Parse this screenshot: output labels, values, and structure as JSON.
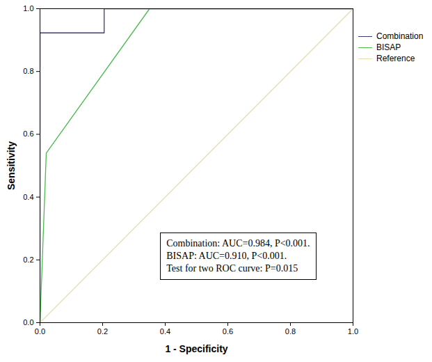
{
  "chart_data": {
    "type": "line",
    "xlabel": "1 - Specificity",
    "ylabel": "Sensitivity",
    "xlim": [
      0,
      1
    ],
    "ylim": [
      0,
      1
    ],
    "xticks": [
      {
        "value": 0,
        "label": "0.0"
      },
      {
        "value": 0.2,
        "label": "0.2"
      },
      {
        "value": 0.4,
        "label": "0.4"
      },
      {
        "value": 0.6,
        "label": "0.6"
      },
      {
        "value": 0.8,
        "label": "0.8"
      },
      {
        "value": 1,
        "label": "1.0"
      }
    ],
    "yticks": [
      {
        "value": 0,
        "label": "0.0"
      },
      {
        "value": 0.2,
        "label": "0.2"
      },
      {
        "value": 0.4,
        "label": "0.4"
      },
      {
        "value": 0.6,
        "label": "0.6"
      },
      {
        "value": 0.8,
        "label": "0.8"
      },
      {
        "value": 1,
        "label": "1.0"
      }
    ],
    "legend": "right",
    "annotations": [
      "Combination: AUC=0.984, P<0.001.",
      "BISAP: AUC=0.910, P<0.001.",
      "Test for two ROC curve: P=0.015"
    ],
    "series": [
      {
        "name": "Combination",
        "color": "#3b3b78",
        "x": [
          0,
          0,
          0.205,
          0.205,
          1
        ],
        "values": [
          0,
          0.923,
          0.923,
          1,
          1
        ]
      },
      {
        "name": "BISAP",
        "color": "#4cba4c",
        "x": [
          0,
          0.02,
          0.35,
          1
        ],
        "values": [
          0,
          0.54,
          1,
          1
        ]
      },
      {
        "name": "Reference",
        "color": "#e6dcae",
        "x": [
          0,
          1
        ],
        "values": [
          0,
          1
        ]
      }
    ]
  }
}
